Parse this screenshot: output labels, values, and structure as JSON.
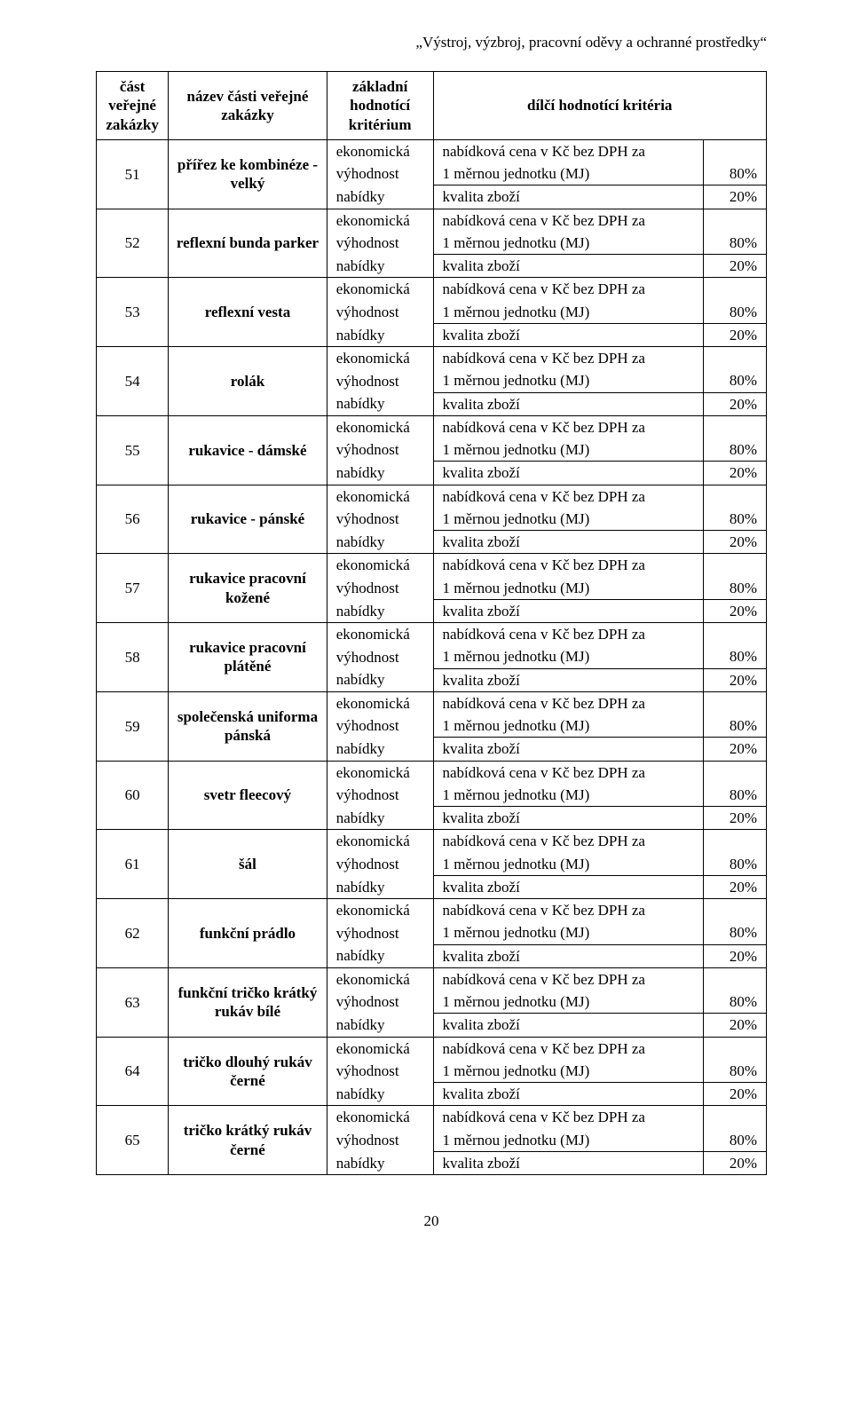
{
  "doc_header": "„Výstroj, výzbroj, pracovní oděvy a ochranné prostředky“",
  "page_number": "20",
  "columns": {
    "col1": "část veřejné zakázky",
    "col2": "název části veřejné zakázky",
    "col3": "základní hodnotící kritérium",
    "col4": "dílčí hodnotící kritéria"
  },
  "criterion_lines": {
    "l1": "ekonomická",
    "l2": "výhodnost",
    "l3": "nabídky"
  },
  "sub_lines": {
    "s1": "nabídková cena v Kč bez DPH za",
    "s2": "1 měrnou jednotku (MJ)",
    "s3": "kvalita zboží"
  },
  "pct": {
    "p80": "80%",
    "p20": "20%"
  },
  "rows": [
    {
      "num": "51",
      "name": "přířez ke kombinéze - velký"
    },
    {
      "num": "52",
      "name": "reflexní bunda parker"
    },
    {
      "num": "53",
      "name": "reflexní vesta"
    },
    {
      "num": "54",
      "name": "rolák"
    },
    {
      "num": "55",
      "name": "rukavice - dámské"
    },
    {
      "num": "56",
      "name": "rukavice - pánské"
    },
    {
      "num": "57",
      "name": "rukavice pracovní kožené"
    },
    {
      "num": "58",
      "name": "rukavice pracovní plátěné"
    },
    {
      "num": "59",
      "name": "společenská uniforma pánská"
    },
    {
      "num": "60",
      "name": "svetr fleecový"
    },
    {
      "num": "61",
      "name": "šál"
    },
    {
      "num": "62",
      "name": "funkční prádlo"
    },
    {
      "num": "63",
      "name": "funkční tričko krátký rukáv bílé"
    },
    {
      "num": "64",
      "name": "tričko dlouhý rukáv černé"
    },
    {
      "num": "65",
      "name": "tričko krátký rukáv černé"
    }
  ]
}
